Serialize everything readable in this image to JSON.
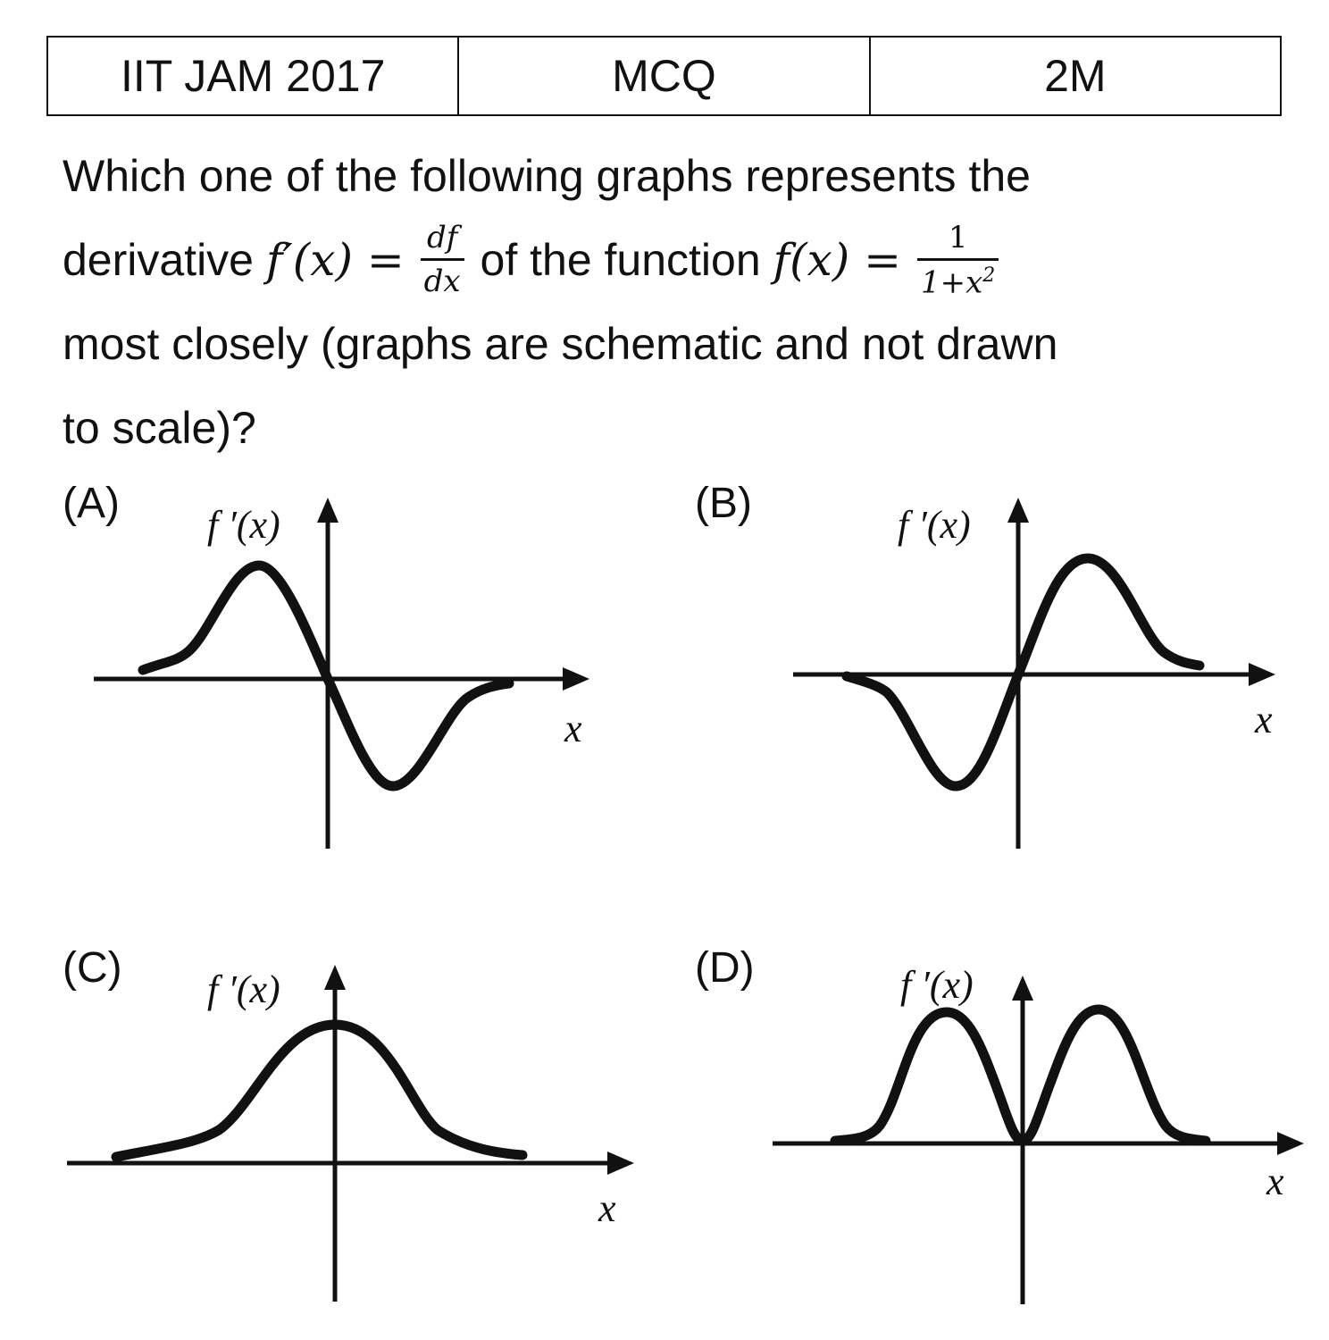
{
  "header": {
    "exam": "IIT JAM 2017",
    "type": "MCQ",
    "marks": "2M"
  },
  "question": {
    "line1": "Which one of the following graphs represents the",
    "line2_prefix": "derivative",
    "derivative_lhs": "f′(x) =",
    "deriv_num": "df",
    "deriv_den": "dx",
    "line2_middle": "of the function",
    "function_lhs": "f(x) =",
    "func_num": "1",
    "func_den": "1+x",
    "func_den_exp": "2",
    "line3": "most closely (graphs are schematic and not drawn",
    "line4": "to scale)?"
  },
  "options": [
    {
      "label": "(A)",
      "y_axis_label": "f ′(x)",
      "x_axis_label": "x"
    },
    {
      "label": "(B)",
      "y_axis_label": "f ′(x)",
      "x_axis_label": "x"
    },
    {
      "label": "(C)",
      "y_axis_label": "f ′(x)",
      "x_axis_label": "x"
    },
    {
      "label": "(D)",
      "y_axis_label": "f ′(x)",
      "x_axis_label": "x"
    }
  ]
}
